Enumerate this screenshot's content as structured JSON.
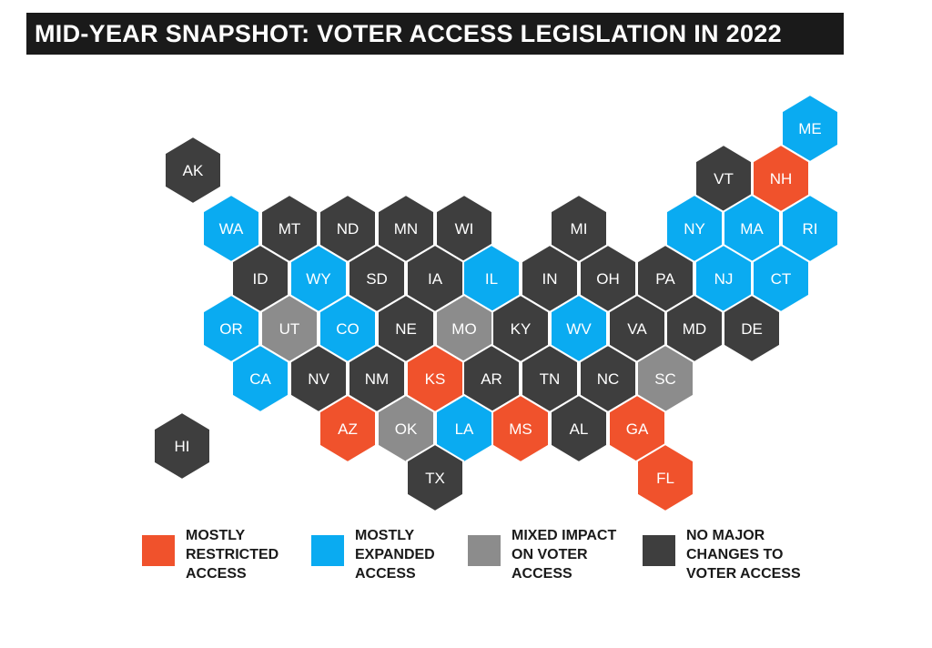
{
  "title": "MID-YEAR SNAPSHOT: VOTER ACCESS LEGISLATION IN 2022",
  "categories": {
    "restricted": {
      "label": "MOSTLY\nRESTRICTED\nACCESS",
      "color": "#f0522c"
    },
    "expanded": {
      "label": "MOSTLY\nEXPANDED\nACCESS",
      "color": "#0aabf1"
    },
    "mixed": {
      "label": "MIXED IMPACT\nON VOTER\nACCESS",
      "color": "#8c8c8c"
    },
    "none": {
      "label": "NO MAJOR\nCHANGES TO\nVOTER ACCESS",
      "color": "#3e3e3e"
    }
  },
  "legend_order": [
    "restricted",
    "expanded",
    "mixed",
    "none"
  ],
  "states": [
    {
      "abbr": "AK",
      "category": "none"
    },
    {
      "abbr": "ME",
      "category": "expanded"
    },
    {
      "abbr": "VT",
      "category": "none"
    },
    {
      "abbr": "NH",
      "category": "restricted"
    },
    {
      "abbr": "WA",
      "category": "expanded"
    },
    {
      "abbr": "MT",
      "category": "none"
    },
    {
      "abbr": "ND",
      "category": "none"
    },
    {
      "abbr": "MN",
      "category": "none"
    },
    {
      "abbr": "WI",
      "category": "none"
    },
    {
      "abbr": "MI",
      "category": "none"
    },
    {
      "abbr": "NY",
      "category": "expanded"
    },
    {
      "abbr": "MA",
      "category": "expanded"
    },
    {
      "abbr": "RI",
      "category": "expanded"
    },
    {
      "abbr": "ID",
      "category": "none"
    },
    {
      "abbr": "WY",
      "category": "expanded"
    },
    {
      "abbr": "SD",
      "category": "none"
    },
    {
      "abbr": "IA",
      "category": "none"
    },
    {
      "abbr": "IL",
      "category": "expanded"
    },
    {
      "abbr": "IN",
      "category": "none"
    },
    {
      "abbr": "OH",
      "category": "none"
    },
    {
      "abbr": "PA",
      "category": "none"
    },
    {
      "abbr": "NJ",
      "category": "expanded"
    },
    {
      "abbr": "CT",
      "category": "expanded"
    },
    {
      "abbr": "OR",
      "category": "expanded"
    },
    {
      "abbr": "UT",
      "category": "mixed"
    },
    {
      "abbr": "CO",
      "category": "expanded"
    },
    {
      "abbr": "NE",
      "category": "none"
    },
    {
      "abbr": "MO",
      "category": "mixed"
    },
    {
      "abbr": "KY",
      "category": "none"
    },
    {
      "abbr": "WV",
      "category": "expanded"
    },
    {
      "abbr": "VA",
      "category": "none"
    },
    {
      "abbr": "MD",
      "category": "none"
    },
    {
      "abbr": "DE",
      "category": "none"
    },
    {
      "abbr": "CA",
      "category": "expanded"
    },
    {
      "abbr": "NV",
      "category": "none"
    },
    {
      "abbr": "NM",
      "category": "none"
    },
    {
      "abbr": "KS",
      "category": "restricted"
    },
    {
      "abbr": "AR",
      "category": "none"
    },
    {
      "abbr": "TN",
      "category": "none"
    },
    {
      "abbr": "NC",
      "category": "none"
    },
    {
      "abbr": "SC",
      "category": "mixed"
    },
    {
      "abbr": "AZ",
      "category": "restricted"
    },
    {
      "abbr": "OK",
      "category": "mixed"
    },
    {
      "abbr": "LA",
      "category": "expanded"
    },
    {
      "abbr": "MS",
      "category": "restricted"
    },
    {
      "abbr": "AL",
      "category": "none"
    },
    {
      "abbr": "GA",
      "category": "restricted"
    },
    {
      "abbr": "HI",
      "category": "none"
    },
    {
      "abbr": "TX",
      "category": "none"
    },
    {
      "abbr": "FL",
      "category": "restricted"
    }
  ]
}
